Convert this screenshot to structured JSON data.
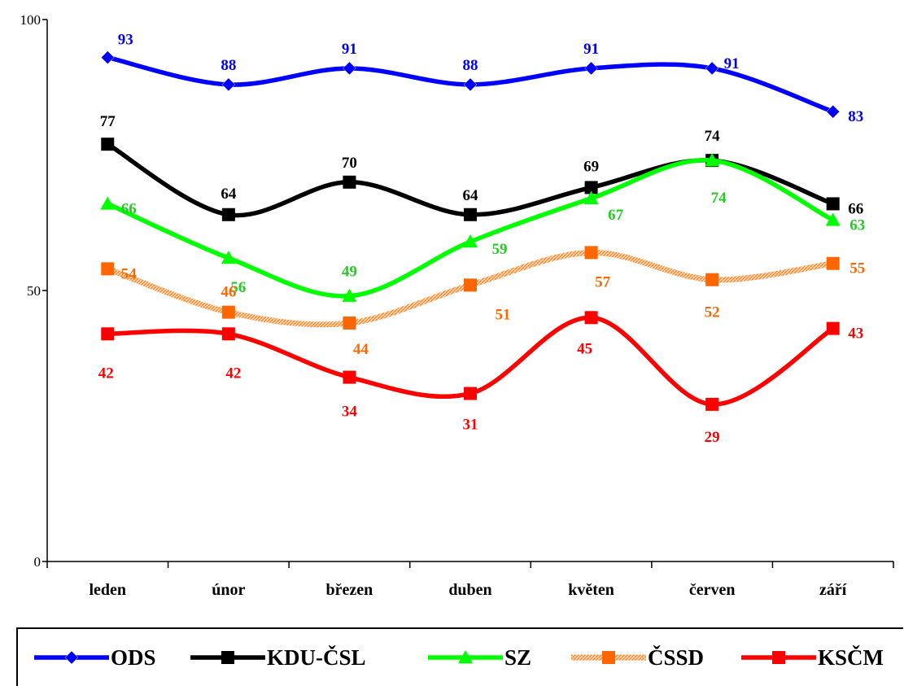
{
  "chart_data": {
    "type": "line",
    "categories": [
      "leden",
      "únor",
      "březen",
      "duben",
      "květen",
      "červen",
      "září"
    ],
    "ylim": [
      0,
      100
    ],
    "yticks": [
      "0",
      "50",
      "100"
    ],
    "grid": false,
    "legend_position": "bottom",
    "series": [
      {
        "name": "ODS",
        "values": [
          93,
          88,
          91,
          88,
          91,
          91,
          83
        ],
        "color": "#0000ff",
        "marker": "diamond",
        "style": "solid",
        "labels": [
          "93",
          "88",
          "91",
          "88",
          "91",
          "91",
          "83"
        ]
      },
      {
        "name": "KDU-ČSL",
        "values": [
          77,
          64,
          70,
          64,
          69,
          74,
          66
        ],
        "color": "#000000",
        "marker": "square",
        "style": "solid",
        "labels": [
          "77",
          "64",
          "70",
          "64",
          "69",
          "74",
          "66"
        ]
      },
      {
        "name": "SZ",
        "values": [
          66,
          56,
          49,
          59,
          67,
          74,
          63
        ],
        "color": "#00ff00",
        "marker": "triangle",
        "style": "solid",
        "labels": [
          "66",
          "56",
          "49",
          "59",
          "67",
          "74",
          "63"
        ]
      },
      {
        "name": "ČSSD",
        "values": [
          54,
          46,
          44,
          51,
          57,
          52,
          55
        ],
        "color": "#ff6600",
        "marker": "square",
        "style": "hatched",
        "labels": [
          "54",
          "46",
          "44",
          "51",
          "57",
          "52",
          "55"
        ]
      },
      {
        "name": "KSČM",
        "values": [
          42,
          42,
          34,
          31,
          45,
          29,
          43
        ],
        "color": "#ff0000",
        "marker": "square",
        "style": "solid",
        "labels": [
          "42",
          "42",
          "34",
          "31",
          "45",
          "29",
          "43"
        ]
      }
    ]
  }
}
